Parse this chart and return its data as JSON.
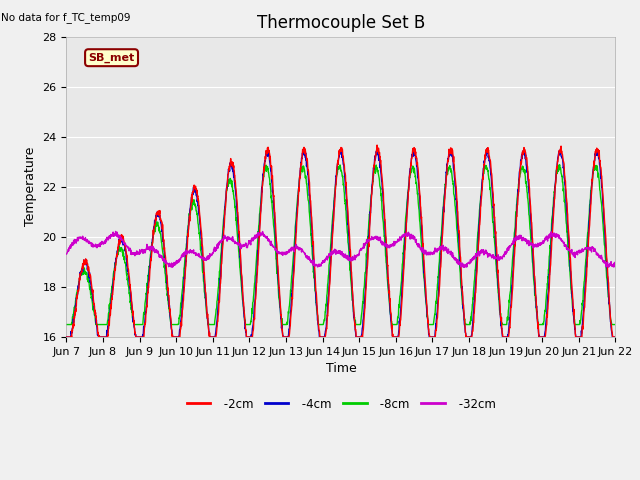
{
  "title": "Thermocouple Set B",
  "no_data_label": "No data for f_TC_temp09",
  "ylabel": "Temperature",
  "xlabel": "Time",
  "ylim": [
    16,
    28
  ],
  "xlim": [
    0,
    15
  ],
  "x_tick_labels": [
    "Jun 7",
    "Jun 8",
    "Jun 9",
    "Jun 10",
    "Jun 11",
    "Jun 12",
    "Jun 13",
    "Jun 14",
    "Jun 15",
    "Jun 16",
    "Jun 17",
    "Jun 18",
    "Jun 19",
    "Jun 20",
    "Jun 21",
    "Jun 22"
  ],
  "legend_label": "SB_met",
  "line_colors": {
    "-2cm": "#ff0000",
    "-4cm": "#0000cc",
    "-8cm": "#00cc00",
    "-32cm": "#cc00cc"
  },
  "background_color": "#f0f0f0",
  "plot_bg_color": "#e8e8e8",
  "title_fontsize": 12,
  "axis_fontsize": 9,
  "tick_fontsize": 8,
  "yticks": [
    16,
    18,
    20,
    22,
    24,
    26,
    28
  ]
}
